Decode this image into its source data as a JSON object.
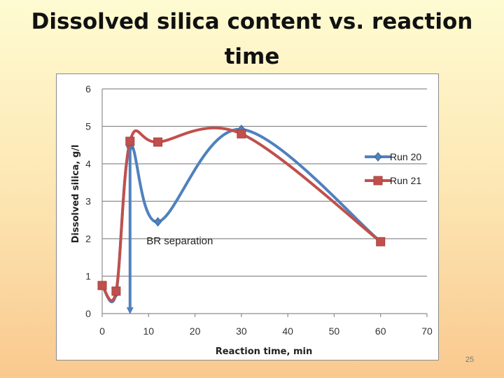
{
  "slide": {
    "title": "Dissolved silica content vs. reaction time",
    "page_number": "25"
  },
  "chart_data": {
    "type": "line",
    "title": "",
    "xlabel": "Reaction time, min",
    "ylabel": "Dissolved silica, g/l",
    "xlim": [
      0,
      70
    ],
    "ylim": [
      0,
      6
    ],
    "xticks": [
      "0",
      "10",
      "20",
      "30",
      "40",
      "50",
      "60",
      "70"
    ],
    "yticks": [
      "0",
      "1",
      "2",
      "3",
      "4",
      "5",
      "6"
    ],
    "grid": true,
    "legend_position": "right",
    "series": [
      {
        "name": "Run 20",
        "color": "#4f81bd",
        "marker": "diamond",
        "smooth": true,
        "x": [
          0,
          3,
          6,
          12,
          30,
          60
        ],
        "y": [
          0.75,
          0.55,
          4.45,
          2.45,
          4.92,
          1.92
        ]
      },
      {
        "name": "Run 21",
        "color": "#c0504d",
        "marker": "square",
        "smooth": true,
        "x": [
          0,
          3,
          6,
          12,
          30,
          60
        ],
        "y": [
          0.75,
          0.6,
          4.6,
          4.58,
          4.8,
          1.92
        ]
      }
    ],
    "annotations": [
      {
        "text": "BR separation",
        "color": "#4f81bd",
        "arrow_x": 6,
        "arrow_from_y": 4.4,
        "arrow_to_y": 0,
        "text_x": 10,
        "text_y": 1.85
      }
    ]
  }
}
